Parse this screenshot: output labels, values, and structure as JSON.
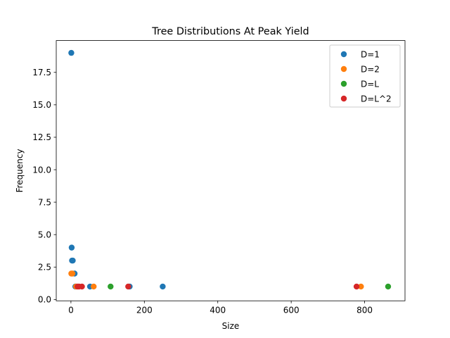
{
  "chart_data": {
    "type": "scatter",
    "title": "Tree Distributions At Peak Yield",
    "xlabel": "Size",
    "ylabel": "Frequency",
    "xlim": [
      -40,
      910
    ],
    "ylim": [
      -0.1,
      19.95
    ],
    "xticks": [
      0,
      200,
      400,
      600,
      800
    ],
    "xtick_labels": [
      "0",
      "200",
      "400",
      "600",
      "800"
    ],
    "yticks": [
      0.0,
      2.5,
      5.0,
      7.5,
      10.0,
      12.5,
      15.0,
      17.5
    ],
    "ytick_labels": [
      "0.0",
      "2.5",
      "5.0",
      "7.5",
      "10.0",
      "12.5",
      "15.0",
      "17.5"
    ],
    "grid": false,
    "legend_position": "top-right",
    "series": [
      {
        "name": "D=1",
        "color": "#1f77b4",
        "points": [
          [
            1,
            19
          ],
          [
            2,
            4
          ],
          [
            3,
            3
          ],
          [
            5,
            3
          ],
          [
            10,
            2
          ],
          [
            12,
            1
          ],
          [
            52,
            1
          ],
          [
            160,
            1
          ],
          [
            250,
            1
          ]
        ]
      },
      {
        "name": "D=2",
        "color": "#ff7f0e",
        "points": [
          [
            1,
            2
          ],
          [
            4,
            2
          ],
          [
            14,
            1
          ],
          [
            62,
            1
          ],
          [
            790,
            1
          ]
        ]
      },
      {
        "name": "D=L",
        "color": "#2ca02c",
        "points": [
          [
            108,
            1
          ],
          [
            864,
            1
          ]
        ]
      },
      {
        "name": "D=L^2",
        "color": "#d62728",
        "points": [
          [
            18,
            1
          ],
          [
            22,
            1
          ],
          [
            30,
            1
          ],
          [
            156,
            1
          ],
          [
            778,
            1
          ]
        ]
      }
    ]
  }
}
